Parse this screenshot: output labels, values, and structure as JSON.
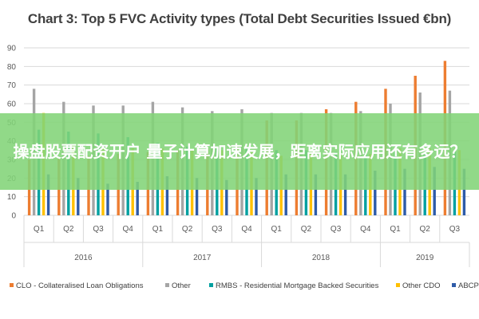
{
  "overlay": {
    "text": "操盘股票配资开户 量子计算加速发展，距离实际应用还有多远？"
  },
  "colors": {
    "CLO": "#ED7D31",
    "Other": "#A5A5A5",
    "RMBS": "#00A0A0",
    "OtherCDO": "#FFC000",
    "ABCP": "#2E5BA8",
    "grid": "#D9D9D9",
    "banner": "#82D478"
  },
  "chart_data": {
    "type": "bar",
    "title": "Chart 3: Top 5 FVC Activity types (Total Debt Securities Issued €bn)",
    "xlabel": "",
    "ylabel": "",
    "ylim": [
      0,
      90
    ],
    "yticks": [
      0,
      10,
      20,
      30,
      40,
      50,
      60,
      70,
      80,
      90
    ],
    "grid": true,
    "legend_position": "bottom",
    "categories": [
      "Q1",
      "Q2",
      "Q3",
      "Q4",
      "Q1",
      "Q2",
      "Q3",
      "Q4",
      "Q1",
      "Q2",
      "Q3",
      "Q4",
      "Q1",
      "Q2",
      "Q3"
    ],
    "groups": [
      {
        "label": "2016",
        "count": 4
      },
      {
        "label": "2017",
        "count": 4
      },
      {
        "label": "2018",
        "count": 4
      },
      {
        "label": "2019",
        "count": 3
      }
    ],
    "series": [
      {
        "name": "CLO - Collateralised Loan Obligations",
        "color_key": "CLO",
        "values": [
          30,
          31,
          32,
          33,
          34,
          35,
          36,
          37,
          51,
          51,
          57,
          61,
          68,
          75,
          83
        ]
      },
      {
        "name": "Other",
        "color_key": "Other",
        "values": [
          68,
          61,
          59,
          59,
          61,
          58,
          56,
          57,
          55,
          55,
          55,
          56,
          60,
          66,
          67
        ]
      },
      {
        "name": "RMBS - Residential Mortgage Backed Securities",
        "color_key": "RMBS",
        "values": [
          46,
          45,
          44,
          42,
          39,
          37,
          37,
          36,
          35,
          35,
          34,
          34,
          34,
          34,
          34
        ]
      },
      {
        "name": "Other CDO",
        "color_key": "OtherCDO",
        "values": [
          55,
          38,
          37,
          36,
          36,
          35,
          35,
          34,
          32,
          34,
          33,
          33,
          36,
          36,
          35
        ]
      },
      {
        "name": "ABCP",
        "color_key": "ABCP",
        "values": [
          22,
          20,
          17,
          18,
          21,
          20,
          19,
          20,
          22,
          22,
          22,
          24,
          25,
          26,
          25
        ]
      }
    ]
  }
}
